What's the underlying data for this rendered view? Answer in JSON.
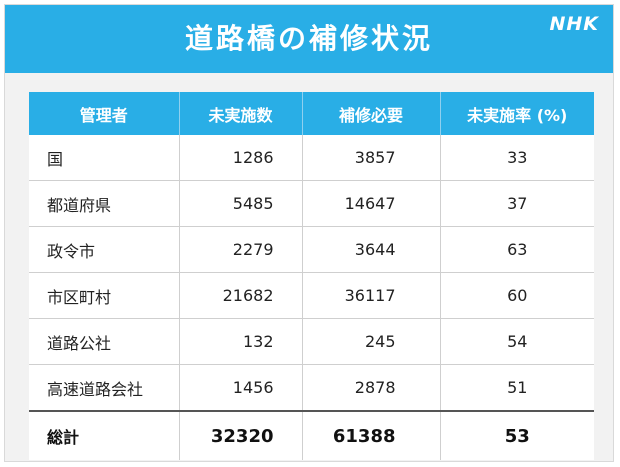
{
  "header": {
    "title": "道路橋の補修状況",
    "logo": "NHK"
  },
  "colors": {
    "accent": "#29aee6",
    "header_text": "#ffffff",
    "background": "#f2f2f2"
  },
  "chart_data": {
    "type": "table",
    "title": "道路橋の補修状況",
    "columns": [
      "管理者",
      "未実施数",
      "補修必要",
      "未実施率 (%)"
    ],
    "rows": [
      {
        "manager": "国",
        "unimplemented": 1286,
        "repair_needed": 3857,
        "rate": 33
      },
      {
        "manager": "都道府県",
        "unimplemented": 5485,
        "repair_needed": 14647,
        "rate": 37
      },
      {
        "manager": "政令市",
        "unimplemented": 2279,
        "repair_needed": 3644,
        "rate": 63
      },
      {
        "manager": "市区町村",
        "unimplemented": 21682,
        "repair_needed": 36117,
        "rate": 60
      },
      {
        "manager": "道路公社",
        "unimplemented": 132,
        "repair_needed": 245,
        "rate": 54
      },
      {
        "manager": "高速道路会社",
        "unimplemented": 1456,
        "repair_needed": 2878,
        "rate": 51
      }
    ],
    "total": {
      "label": "総計",
      "unimplemented": 32320,
      "repair_needed": 61388,
      "rate": 53
    }
  }
}
